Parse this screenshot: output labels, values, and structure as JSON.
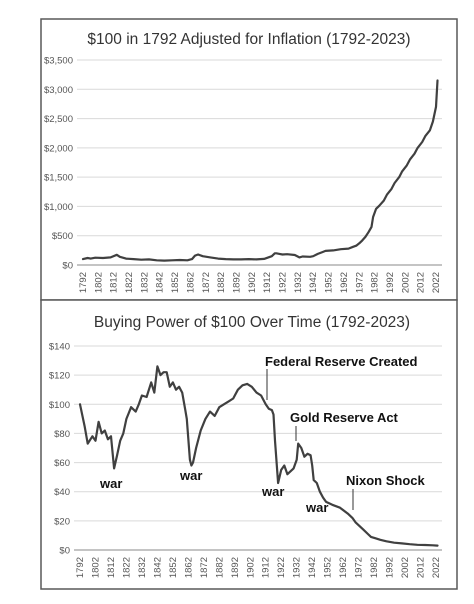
{
  "chart_data": [
    {
      "type": "line",
      "title": "$100 in 1792 Adjusted for Inflation (1792-2023)",
      "xlabel": "",
      "ylabel": "",
      "ylim": [
        0,
        3500
      ],
      "y_ticks": [
        "$0",
        "$500",
        "$1,000",
        "$1,500",
        "$2,000",
        "$2,500",
        "$3,000",
        "$3,500"
      ],
      "x_ticks": [
        "1792",
        "1802",
        "1812",
        "1822",
        "1832",
        "1842",
        "1852",
        "1862",
        "1872",
        "1882",
        "1892",
        "1902",
        "1912",
        "1922",
        "1932",
        "1942",
        "1952",
        "1962",
        "1972",
        "1982",
        "1992",
        "2002",
        "2012",
        "2022"
      ],
      "grid": "horizontal",
      "series": [
        {
          "x": [
            1792,
            1795,
            1797,
            1800,
            1805,
            1810,
            1814,
            1816,
            1820,
            1825,
            1830,
            1835,
            1840,
            1845,
            1850,
            1855,
            1860,
            1863,
            1865,
            1867,
            1870,
            1875,
            1880,
            1885,
            1890,
            1895,
            1900,
            1905,
            1910,
            1915,
            1917,
            1918,
            1920,
            1922,
            1925,
            1930,
            1933,
            1935,
            1940,
            1942,
            1945,
            1948,
            1950,
            1955,
            1960,
            1965,
            1968,
            1970,
            1972,
            1974,
            1976,
            1978,
            1980,
            1981,
            1983,
            1985,
            1988,
            1990,
            1993,
            1995,
            1998,
            2000,
            2003,
            2005,
            2008,
            2010,
            2013,
            2015,
            2018,
            2020,
            2022,
            2023
          ],
          "values": [
            100,
            120,
            110,
            125,
            120,
            130,
            175,
            140,
            110,
            100,
            90,
            95,
            80,
            75,
            80,
            85,
            80,
            100,
            160,
            180,
            150,
            130,
            110,
            100,
            95,
            95,
            100,
            95,
            105,
            150,
            200,
            200,
            190,
            180,
            185,
            170,
            130,
            145,
            140,
            150,
            190,
            220,
            240,
            250,
            270,
            280,
            310,
            330,
            370,
            420,
            480,
            560,
            650,
            820,
            960,
            1010,
            1100,
            1200,
            1300,
            1400,
            1500,
            1600,
            1700,
            1800,
            1900,
            2000,
            2100,
            2200,
            2300,
            2450,
            2700,
            3150
          ]
        }
      ]
    },
    {
      "type": "line",
      "title": "Buying Power of $100 Over Time (1792-2023)",
      "xlabel": "",
      "ylabel": "",
      "ylim": [
        0,
        140
      ],
      "y_ticks": [
        "$0",
        "$20",
        "$40",
        "$60",
        "$80",
        "$100",
        "$120",
        "$140"
      ],
      "x_ticks": [
        "1792",
        "1802",
        "1812",
        "1822",
        "1832",
        "1842",
        "1852",
        "1862",
        "1872",
        "1882",
        "1892",
        "1902",
        "1912",
        "1922",
        "1932",
        "1942",
        "1952",
        "1962",
        "1972",
        "1982",
        "1992",
        "2002",
        "2012",
        "2022"
      ],
      "grid": "horizontal",
      "annotations": {
        "federal_reserve": "Federal Reserve Created",
        "gold_reserve": "Gold Reserve Act",
        "nixon": "Nixon Shock",
        "war1": "war",
        "war2": "war",
        "war3": "war",
        "war4": "war"
      },
      "series": [
        {
          "x": [
            1792,
            1795,
            1797,
            1800,
            1802,
            1804,
            1806,
            1808,
            1810,
            1812,
            1814,
            1816,
            1818,
            1820,
            1822,
            1825,
            1828,
            1830,
            1832,
            1835,
            1838,
            1840,
            1842,
            1844,
            1846,
            1848,
            1850,
            1852,
            1854,
            1856,
            1858,
            1860,
            1861,
            1863,
            1864,
            1865,
            1867,
            1870,
            1873,
            1876,
            1879,
            1882,
            1885,
            1888,
            1891,
            1894,
            1897,
            1900,
            1903,
            1906,
            1909,
            1912,
            1914,
            1916,
            1917,
            1918,
            1920,
            1922,
            1924,
            1926,
            1928,
            1930,
            1932,
            1933,
            1935,
            1937,
            1939,
            1941,
            1942,
            1943,
            1945,
            1947,
            1949,
            1951,
            1955,
            1960,
            1965,
            1968,
            1970,
            1972,
            1975,
            1978,
            1980,
            1983,
            1986,
            1990,
            1995,
            2000,
            2005,
            2010,
            2015,
            2020,
            2023
          ],
          "values": [
            100,
            85,
            73,
            78,
            75,
            88,
            80,
            82,
            76,
            78,
            56,
            65,
            75,
            80,
            90,
            98,
            95,
            100,
            106,
            105,
            115,
            108,
            126,
            120,
            122,
            122,
            112,
            115,
            110,
            112,
            108,
            96,
            90,
            62,
            58,
            60,
            70,
            82,
            90,
            95,
            92,
            98,
            100,
            102,
            104,
            110,
            113,
            114,
            112,
            108,
            106,
            100,
            97,
            96,
            93,
            75,
            46,
            55,
            58,
            52,
            54,
            56,
            62,
            73,
            70,
            64,
            66,
            65,
            58,
            48,
            46,
            40,
            36,
            33,
            31,
            29,
            25,
            22,
            19,
            17,
            14,
            11,
            9,
            8,
            7,
            6,
            5,
            4.5,
            4,
            3.6,
            3.4,
            3.2,
            3.0
          ]
        }
      ]
    }
  ]
}
